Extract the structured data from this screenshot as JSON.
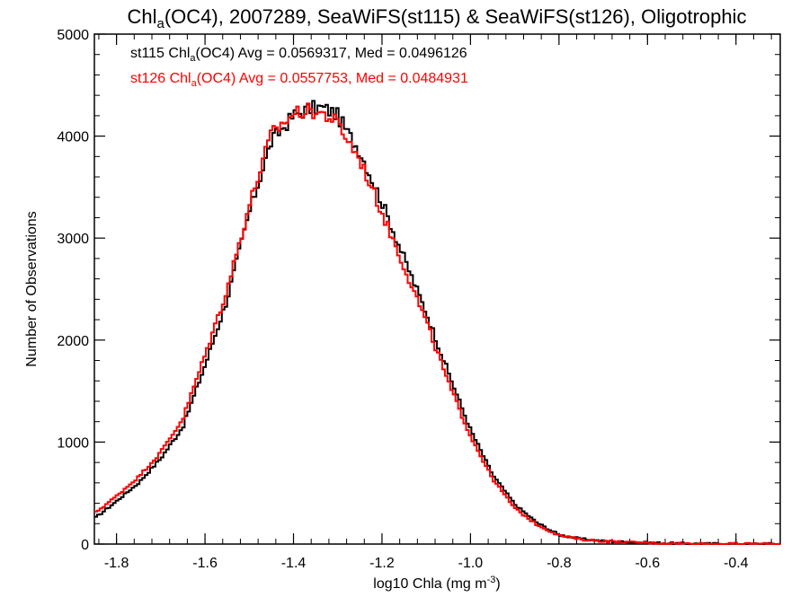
{
  "chart_data": {
    "type": "line",
    "title": {
      "prefix": "Chl",
      "sub": "a",
      "suffix": "(OC4), 2007289, SeaWiFS(st115) & SeaWiFS(st126), Oligotrophic"
    },
    "xlabel": {
      "prefix": "log10 Chla (mg m",
      "sup": "-3",
      "suffix": ")"
    },
    "ylabel": "Number of Observations",
    "xlim": [
      -1.85,
      -0.3
    ],
    "ylim": [
      0,
      5000
    ],
    "xticks": [
      -1.8,
      -1.6,
      -1.4,
      -1.2,
      -1.0,
      -0.8,
      -0.6,
      -0.4
    ],
    "xtick_labels": [
      "-1.8",
      "-1.6",
      "-1.4",
      "-1.2",
      "-1.0",
      "-0.8",
      "-0.6",
      "-0.4"
    ],
    "yticks": [
      0,
      1000,
      2000,
      3000,
      4000,
      5000
    ],
    "ytick_labels": [
      "0",
      "1000",
      "2000",
      "3000",
      "4000",
      "5000"
    ],
    "grid": false,
    "legend_placement": "top-left",
    "series": [
      {
        "name": "st115",
        "color": "#000000",
        "legend": {
          "prefix": "st115 Chl",
          "sub": "a",
          "suffix": "(OC4) Avg = 0.0569317, Med = 0.0496126"
        },
        "x": [
          -1.85,
          -1.8,
          -1.75,
          -1.7,
          -1.65,
          -1.6,
          -1.55,
          -1.5,
          -1.45,
          -1.4,
          -1.375,
          -1.35,
          -1.33,
          -1.31,
          -1.3,
          -1.28,
          -1.25,
          -1.2,
          -1.15,
          -1.1,
          -1.05,
          -1.0,
          -0.95,
          -0.9,
          -0.85,
          -0.8,
          -0.75,
          -0.7,
          -0.65,
          -0.6,
          -0.55,
          -0.5,
          -0.45,
          -0.4,
          -0.35,
          -0.3
        ],
        "values": [
          250,
          420,
          600,
          840,
          1150,
          1750,
          2400,
          3250,
          3950,
          4200,
          4250,
          4280,
          4270,
          4230,
          4200,
          4050,
          3850,
          3350,
          2800,
          2270,
          1680,
          1120,
          680,
          390,
          210,
          90,
          50,
          30,
          20,
          14,
          8,
          4,
          3,
          2,
          2,
          2
        ]
      },
      {
        "name": "st126",
        "color": "#ff0000",
        "legend": {
          "prefix": "st126 Chl",
          "sub": "a",
          "suffix": "(OC4) Avg = 0.0557753, Med = 0.0484931"
        },
        "x": [
          -1.85,
          -1.8,
          -1.75,
          -1.7,
          -1.65,
          -1.6,
          -1.55,
          -1.5,
          -1.45,
          -1.4,
          -1.375,
          -1.35,
          -1.33,
          -1.31,
          -1.3,
          -1.28,
          -1.25,
          -1.2,
          -1.15,
          -1.1,
          -1.05,
          -1.0,
          -0.95,
          -0.9,
          -0.85,
          -0.8,
          -0.75,
          -0.7,
          -0.65,
          -0.6,
          -0.55,
          -0.5,
          -0.45,
          -0.4,
          -0.35,
          -0.3
        ],
        "values": [
          300,
          470,
          660,
          900,
          1230,
          1850,
          2500,
          3320,
          4020,
          4220,
          4250,
          4240,
          4210,
          4160,
          4120,
          3980,
          3770,
          3250,
          2720,
          2180,
          1580,
          1060,
          640,
          350,
          190,
          85,
          45,
          28,
          18,
          12,
          7,
          4,
          3,
          2,
          2,
          2
        ]
      }
    ]
  }
}
